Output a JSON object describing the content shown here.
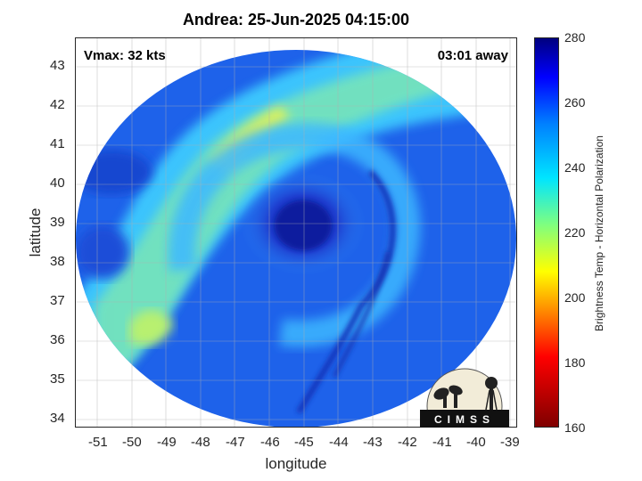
{
  "title": "Andrea: 25-Jun-2025 04:15:00",
  "annotations": {
    "vmax": "Vmax: 32 kts",
    "time_away": "03:01 away"
  },
  "axes": {
    "xlabel": "longitude",
    "ylabel": "latitude",
    "x_ticks": [
      "-51",
      "-50",
      "-49",
      "-48",
      "-47",
      "-46",
      "-45",
      "-44",
      "-43",
      "-42",
      "-41",
      "-40",
      "-39"
    ],
    "y_ticks": [
      "43",
      "42",
      "41",
      "40",
      "39",
      "38",
      "37",
      "36",
      "35",
      "34"
    ],
    "xlim": [
      -51.6,
      -38.9
    ],
    "ylim": [
      33.8,
      43.7
    ],
    "grid": true
  },
  "colorbar": {
    "label": "Brightness Temp - Horizontal Polarization",
    "ticks": [
      "280",
      "260",
      "240",
      "220",
      "200",
      "180",
      "160"
    ],
    "range": [
      160,
      280
    ],
    "colormap": "jet"
  },
  "logo": {
    "text": "CIMSS"
  },
  "colors": {
    "core": "#0a1fa8",
    "band": "#7fe2a0",
    "background_field": "#1a5fe6",
    "warm": "#ffff40"
  }
}
